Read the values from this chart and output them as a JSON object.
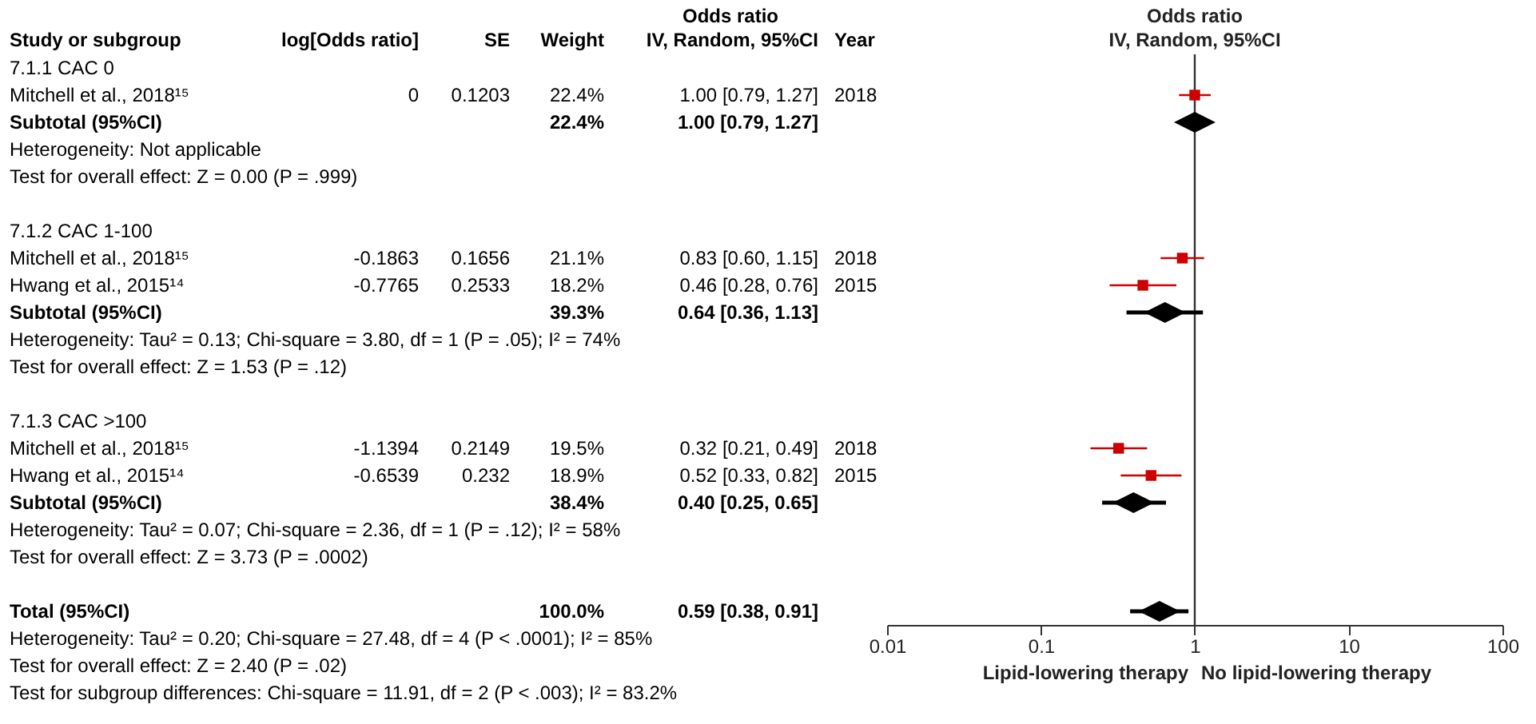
{
  "chart_data": [
    {
      "type": "other",
      "title": "Odds ratio",
      "categories": [
        "Study or subgroup",
        "log[Odds ratio]",
        "SE",
        "Weight",
        "IV, Random, 95%CI",
        "Year"
      ],
      "cell_labels": [
        [
          "7.1.1 CAC 0",
          null,
          null,
          null,
          null,
          null
        ],
        [
          "Mitchell et al., 2018¹⁵",
          "0",
          "0.1203",
          "22.4%",
          "1.00 [0.79, 1.27]",
          "2018"
        ],
        [
          "Subtotal (95%CI)",
          null,
          null,
          "22.4%",
          "1.00 [0.79, 1.27]",
          null
        ],
        [
          "Heterogeneity: Not applicable",
          null,
          null,
          null,
          null,
          null
        ],
        [
          "Test for overall effect: Z = 0.00 (P = .999)",
          null,
          null,
          null,
          null,
          null
        ],
        [
          null,
          null,
          null,
          null,
          null,
          null
        ],
        [
          "7.1.2 CAC 1-100",
          null,
          null,
          null,
          null,
          null
        ],
        [
          "Mitchell et al., 2018¹⁵",
          "-0.1863",
          "0.1656",
          "21.1%",
          "0.83 [0.60, 1.15]",
          "2018"
        ],
        [
          "Hwang et al., 2015¹⁴",
          "-0.7765",
          "0.2533",
          "18.2%",
          "0.46 [0.28, 0.76]",
          "2015"
        ],
        [
          "Subtotal (95%CI)",
          null,
          null,
          "39.3%",
          "0.64 [0.36, 1.13]",
          null
        ],
        [
          "Heterogeneity: Tau² = 0.13; Chi-square = 3.80, df = 1 (P = .05); I² = 74%",
          null,
          null,
          null,
          null,
          null
        ],
        [
          "Test for overall effect: Z = 1.53 (P = .12)",
          null,
          null,
          null,
          null,
          null
        ],
        [
          null,
          null,
          null,
          null,
          null,
          null
        ],
        [
          "7.1.3 CAC >100",
          null,
          null,
          null,
          null,
          null
        ],
        [
          "Mitchell et al., 2018¹⁵",
          "-1.1394",
          "0.2149",
          "19.5%",
          "0.32 [0.21, 0.49]",
          "2018"
        ],
        [
          "Hwang et al., 2015¹⁴",
          "-0.6539",
          "0.232",
          "18.9%",
          "0.52 [0.33, 0.82]",
          "2015"
        ],
        [
          "Subtotal (95%CI)",
          null,
          null,
          "38.4%",
          "0.40 [0.25, 0.65]",
          null
        ],
        [
          "Heterogeneity: Tau² = 0.07; Chi-square = 2.36, df = 1 (P = .12); I² = 58%",
          null,
          null,
          null,
          null,
          null
        ],
        [
          "Test for overall effect: Z = 3.73 (P = .0002)",
          null,
          null,
          null,
          null,
          null
        ],
        [
          null,
          null,
          null,
          null,
          null,
          null
        ],
        [
          "Total (95%CI)",
          null,
          null,
          "100.0%",
          "0.59 [0.38, 0.91]",
          null
        ],
        [
          "Heterogeneity: Tau² = 0.20; Chi-square = 27.48, df = 4 (P < .0001); I² = 85%",
          null,
          null,
          null,
          null,
          null
        ],
        [
          "Test for overall effect: Z = 2.40 (P = .02)",
          null,
          null,
          null,
          null,
          null
        ],
        [
          "Test for subgroup differences: Chi-square = 11.91, df = 2 (P < .003); I² = 83.2%",
          null,
          null,
          null,
          null,
          null
        ]
      ]
    },
    {
      "type": "scatter",
      "title": "Odds ratio",
      "subtitle": "IV, Random, 95%CI",
      "orientation": "horizontal",
      "log": "x",
      "categories": [
        null,
        null,
        null,
        null,
        null,
        null,
        null,
        null,
        null,
        null,
        null,
        null,
        null,
        null,
        null,
        null,
        null,
        null,
        null,
        null,
        null
      ],
      "xlim": [
        0.01,
        100
      ],
      "xticks": [
        0.01,
        0.1,
        1,
        10,
        100
      ],
      "ref_lines": [
        {
          "axis": "x",
          "value": 1,
          "color": "#333333"
        }
      ],
      "annotations": [
        "Lipid-lowering therapy",
        "No lipid-lowering therapy"
      ],
      "series": [
        {
          "marker": "square",
          "color": "#cc0000",
          "values": [
            null,
            1.0,
            null,
            null,
            null,
            null,
            null,
            0.83,
            0.46,
            null,
            null,
            null,
            null,
            null,
            0.32,
            0.52,
            null,
            null,
            null,
            null,
            null
          ],
          "errors": [
            null,
            [
              0.79,
              1.27
            ],
            null,
            null,
            null,
            null,
            null,
            [
              0.6,
              1.15
            ],
            [
              0.28,
              0.76
            ],
            null,
            null,
            null,
            null,
            null,
            [
              0.21,
              0.49
            ],
            [
              0.33,
              0.82
            ],
            null,
            null,
            null,
            null,
            null
          ]
        },
        {
          "marker": "diamond",
          "color": "#000000",
          "values": [
            null,
            null,
            1.0,
            null,
            null,
            null,
            null,
            null,
            null,
            0.64,
            null,
            null,
            null,
            null,
            null,
            null,
            0.4,
            null,
            null,
            null,
            0.59
          ],
          "errors": [
            null,
            null,
            [
              0.79,
              1.27
            ],
            null,
            null,
            null,
            null,
            null,
            null,
            [
              0.36,
              1.13
            ],
            null,
            null,
            null,
            null,
            null,
            null,
            [
              0.25,
              0.65
            ],
            null,
            null,
            null,
            [
              0.38,
              0.91
            ]
          ]
        }
      ]
    }
  ]
}
